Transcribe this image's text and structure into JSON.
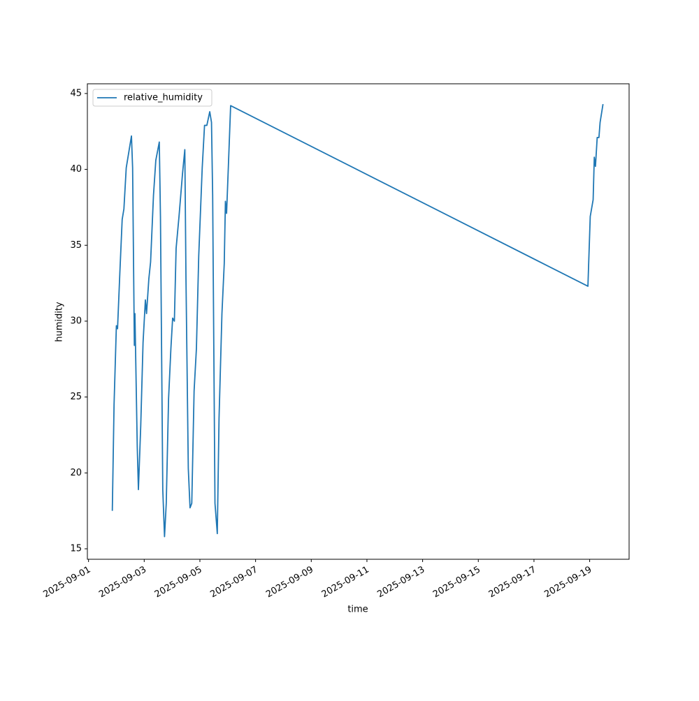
{
  "chart_data": {
    "type": "line",
    "xlabel": "time",
    "ylabel": "humidity",
    "legend": "upper left",
    "x": [
      "2025-09-01T20:30",
      "2025-09-01T22:00",
      "2025-09-02T00:00",
      "2025-09-02T01:00",
      "2025-09-02T03:00",
      "2025-09-02T05:00",
      "2025-09-02T06:30",
      "2025-09-02T08:30",
      "2025-09-02T13:00",
      "2025-09-02T14:00",
      "2025-09-02T15:30",
      "2025-09-02T16:00",
      "2025-09-02T18:00",
      "2025-09-02T19:00",
      "2025-09-02T21:00",
      "2025-09-02T23:00",
      "2025-09-03T01:00",
      "2025-09-03T02:00",
      "2025-09-03T04:00",
      "2025-09-03T05:30",
      "2025-09-03T08:00",
      "2025-09-03T10:00",
      "2025-09-03T13:00",
      "2025-09-03T14:00",
      "2025-09-03T16:00",
      "2025-09-03T17:30",
      "2025-09-03T19:00",
      "2025-09-03T21:00",
      "2025-09-03T23:00",
      "2025-09-04T00:30",
      "2025-09-04T02:00",
      "2025-09-04T03:30",
      "2025-09-04T06:00",
      "2025-09-04T09:00",
      "2025-09-04T11:00",
      "2025-09-04T12:00",
      "2025-09-04T14:00",
      "2025-09-04T15:30",
      "2025-09-04T17:00",
      "2025-09-04T19:00",
      "2025-09-04T21:00",
      "2025-09-04T23:00",
      "2025-09-05T02:00",
      "2025-09-05T04:00",
      "2025-09-05T06:00",
      "2025-09-05T08:30",
      "2025-09-05T10:00",
      "2025-09-05T11:00",
      "2025-09-05T13:00",
      "2025-09-05T15:00",
      "2025-09-05T16:30",
      "2025-09-05T19:00",
      "2025-09-05T21:00",
      "2025-09-05T22:00",
      "2025-09-05T23:00",
      "2025-09-06T00:30",
      "2025-09-06T02:30",
      "2025-09-18T22:30",
      "2025-09-19T00:30",
      "2025-09-19T03:00",
      "2025-09-19T04:00",
      "2025-09-19T05:00",
      "2025-09-19T06:30",
      "2025-09-19T08:00",
      "2025-09-19T09:00",
      "2025-09-19T11:30"
    ],
    "series": [
      {
        "name": "relative_humidity",
        "color": "#1f77b4",
        "values": [
          17.5,
          24.5,
          29.7,
          29.5,
          33.2,
          36.7,
          37.4,
          40.1,
          42.2,
          40.1,
          28.4,
          30.5,
          21.7,
          18.9,
          23.1,
          28.6,
          31.4,
          30.5,
          32.8,
          33.9,
          38.3,
          40.6,
          41.8,
          36.9,
          18.9,
          15.8,
          18.0,
          24.9,
          28.2,
          30.2,
          30.0,
          34.8,
          36.9,
          39.7,
          41.3,
          32.8,
          20.3,
          17.7,
          18.0,
          25.4,
          28.2,
          34.3,
          40.1,
          42.9,
          42.9,
          43.8,
          43.1,
          38.3,
          18.0,
          16.0,
          23.6,
          30.5,
          33.8,
          37.9,
          37.1,
          40.1,
          44.2,
          32.3,
          36.9,
          38.0,
          40.8,
          40.2,
          42.1,
          42.1,
          43.1,
          44.3
        ]
      }
    ],
    "xlim": [
      "2025-08-31T23:00",
      "2025-09-20T10:00"
    ],
    "xticks": [
      "2025-09-01",
      "2025-09-03",
      "2025-09-05",
      "2025-09-07",
      "2025-09-09",
      "2025-09-11",
      "2025-09-13",
      "2025-09-15",
      "2025-09-17",
      "2025-09-19"
    ],
    "ylim": [
      14.31,
      45.64
    ],
    "yticks": [
      15,
      20,
      25,
      30,
      35,
      40,
      45
    ],
    "grid": false
  }
}
